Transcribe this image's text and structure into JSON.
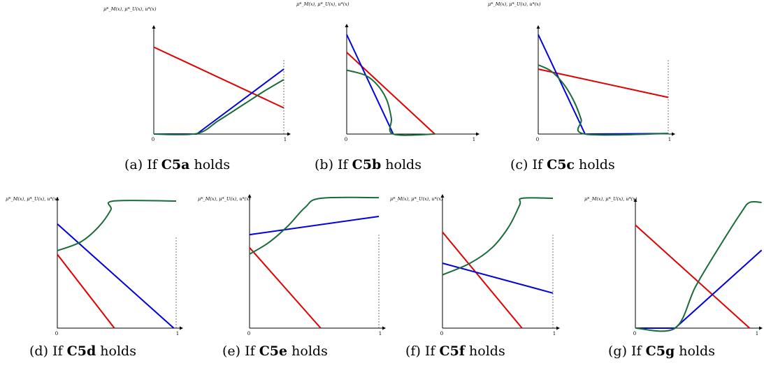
{
  "chart_data": [
    {
      "type": "line",
      "caption": {
        "prefix": "(a) If ",
        "bold": "C5a",
        "suffix": " holds"
      },
      "ylabel": "μ*_M(x), μ*_U(x), u*(x)",
      "xticks": [
        "0",
        "1"
      ],
      "xlim": [
        0,
        1
      ],
      "ylim": [
        0,
        1
      ],
      "right_dashed": true,
      "series": [
        {
          "color": "#e00000",
          "kind": "line",
          "points": [
            [
              0,
              0.83
            ],
            [
              1,
              0.25
            ]
          ]
        },
        {
          "color": "#0000e0",
          "kind": "line",
          "points": [
            [
              0,
              0.0
            ],
            [
              0.33,
              0.0
            ],
            [
              1,
              0.62
            ]
          ]
        },
        {
          "color": "#1a6b3a",
          "kind": "curve",
          "points": [
            [
              0,
              0.0
            ],
            [
              0.33,
              0.005
            ],
            [
              0.5,
              0.13
            ],
            [
              0.7,
              0.29
            ],
            [
              0.85,
              0.41
            ],
            [
              1,
              0.52
            ]
          ]
        }
      ]
    },
    {
      "type": "line",
      "caption": {
        "prefix": "(b) If ",
        "bold": "C5b",
        "suffix": " holds"
      },
      "ylabel": "μ*_M(x), μ*_U(x), u*(x)",
      "xticks": [
        "0",
        "1"
      ],
      "xlim": [
        0,
        1
      ],
      "ylim": [
        0,
        1
      ],
      "right_dashed": false,
      "series": [
        {
          "color": "#e00000",
          "kind": "line",
          "points": [
            [
              0,
              0.78
            ],
            [
              0.7,
              0.0
            ]
          ]
        },
        {
          "color": "#0000e0",
          "kind": "line",
          "points": [
            [
              0,
              0.95
            ],
            [
              0.37,
              0.0
            ]
          ]
        },
        {
          "color": "#1a6b3a",
          "kind": "curve",
          "points": [
            [
              0,
              0.61
            ],
            [
              0.15,
              0.56
            ],
            [
              0.25,
              0.46
            ],
            [
              0.32,
              0.32
            ],
            [
              0.355,
              0.15
            ],
            [
              0.37,
              0.0
            ],
            [
              0.7,
              0.0
            ]
          ]
        }
      ]
    },
    {
      "type": "line",
      "caption": {
        "prefix": "(c) If ",
        "bold": "C5c",
        "suffix": " holds"
      },
      "ylabel": "μ*_M(x), μ*_U(x), u*(x)",
      "xticks": [
        "0",
        "1"
      ],
      "xlim": [
        0,
        1
      ],
      "ylim": [
        0,
        1
      ],
      "right_dashed": true,
      "series": [
        {
          "color": "#e00000",
          "kind": "line",
          "points": [
            [
              0,
              0.62
            ],
            [
              1,
              0.35
            ]
          ]
        },
        {
          "color": "#0000e0",
          "kind": "line",
          "points": [
            [
              0,
              0.95
            ],
            [
              0.36,
              0.0
            ],
            [
              1,
              0.005
            ]
          ]
        },
        {
          "color": "#1a6b3a",
          "kind": "curve",
          "points": [
            [
              0,
              0.66
            ],
            [
              0.1,
              0.6
            ],
            [
              0.2,
              0.47
            ],
            [
              0.28,
              0.3
            ],
            [
              0.33,
              0.14
            ],
            [
              0.36,
              0.0
            ],
            [
              1,
              0.005
            ]
          ]
        }
      ]
    },
    {
      "type": "line",
      "caption": {
        "prefix": "(d) If ",
        "bold": "C5d",
        "suffix": " holds"
      },
      "ylabel": "μ*_M(x), μ*_U(x), u*(x)",
      "xticks": [
        "0",
        "1"
      ],
      "xlim": [
        0,
        1
      ],
      "ylim": [
        0,
        1
      ],
      "right_dashed": true,
      "series": [
        {
          "color": "#e00000",
          "kind": "line",
          "points": [
            [
              0,
              0.58
            ],
            [
              0.48,
              0.0
            ]
          ]
        },
        {
          "color": "#0000e0",
          "kind": "line",
          "points": [
            [
              0,
              0.82
            ],
            [
              0.98,
              0.0
            ]
          ]
        },
        {
          "color": "#1a6b3a",
          "kind": "curve",
          "points": [
            [
              0,
              0.61
            ],
            [
              0.2,
              0.68
            ],
            [
              0.35,
              0.8
            ],
            [
              0.45,
              0.93
            ],
            [
              0.47,
              1.0
            ],
            [
              1,
              1.0
            ]
          ]
        }
      ]
    },
    {
      "type": "line",
      "caption": {
        "prefix": "(e) If ",
        "bold": "C5e",
        "suffix": " holds"
      },
      "ylabel": "μ*_M(x), μ*_U(x), u*(x)",
      "xticks": [
        "0",
        "1"
      ],
      "xlim": [
        0,
        1
      ],
      "ylim": [
        0,
        1
      ],
      "right_dashed": true,
      "series": [
        {
          "color": "#e00000",
          "kind": "line",
          "points": [
            [
              0,
              0.62
            ],
            [
              0.55,
              0.0
            ]
          ]
        },
        {
          "color": "#0000e0",
          "kind": "line",
          "points": [
            [
              0,
              0.72
            ],
            [
              1,
              0.86
            ]
          ]
        },
        {
          "color": "#1a6b3a",
          "kind": "curve",
          "points": [
            [
              0,
              0.57
            ],
            [
              0.15,
              0.66
            ],
            [
              0.3,
              0.79
            ],
            [
              0.43,
              0.93
            ],
            [
              0.55,
              1.0
            ],
            [
              1,
              1.005
            ]
          ]
        }
      ]
    },
    {
      "type": "line",
      "caption": {
        "prefix": "(f) If ",
        "bold": "C5f",
        "suffix": " holds"
      },
      "ylabel": "μ*_M(x), μ*_U(x), u*(x)",
      "xticks": [
        "0",
        "1"
      ],
      "xlim": [
        0,
        1
      ],
      "ylim": [
        0,
        1
      ],
      "right_dashed": true,
      "series": [
        {
          "color": "#e00000",
          "kind": "line",
          "points": [
            [
              0,
              0.74
            ],
            [
              0.72,
              0.0
            ]
          ]
        },
        {
          "color": "#0000e0",
          "kind": "line",
          "points": [
            [
              0,
              0.5
            ],
            [
              1,
              0.27
            ]
          ]
        },
        {
          "color": "#1a6b3a",
          "kind": "curve",
          "points": [
            [
              0,
              0.41
            ],
            [
              0.25,
              0.5
            ],
            [
              0.45,
              0.62
            ],
            [
              0.6,
              0.78
            ],
            [
              0.7,
              0.95
            ],
            [
              0.72,
              1.0
            ],
            [
              1,
              1.0
            ]
          ]
        }
      ]
    },
    {
      "type": "line",
      "caption": {
        "prefix": "(g) If ",
        "bold": "C5g",
        "suffix": " holds"
      },
      "ylabel": "μ*_M(x), μ*_U(x), u*(x)",
      "xticks": [
        "0",
        "1"
      ],
      "xlim": [
        0,
        1
      ],
      "ylim": [
        0,
        1
      ],
      "right_dashed": false,
      "series": [
        {
          "color": "#e00000",
          "kind": "line",
          "points": [
            [
              0,
              0.82
            ],
            [
              0.95,
              0.0
            ]
          ]
        },
        {
          "color": "#0000e0",
          "kind": "line",
          "points": [
            [
              0,
              0.0
            ],
            [
              0.33,
              0.0
            ],
            [
              1.05,
              0.62
            ]
          ]
        },
        {
          "color": "#1a6b3a",
          "kind": "curve",
          "points": [
            [
              0,
              0.0
            ],
            [
              0.33,
              0.0
            ],
            [
              0.5,
              0.33
            ],
            [
              0.7,
              0.65
            ],
            [
              0.88,
              0.92
            ],
            [
              0.95,
              1.0
            ],
            [
              1.05,
              1.0
            ]
          ]
        }
      ]
    }
  ]
}
